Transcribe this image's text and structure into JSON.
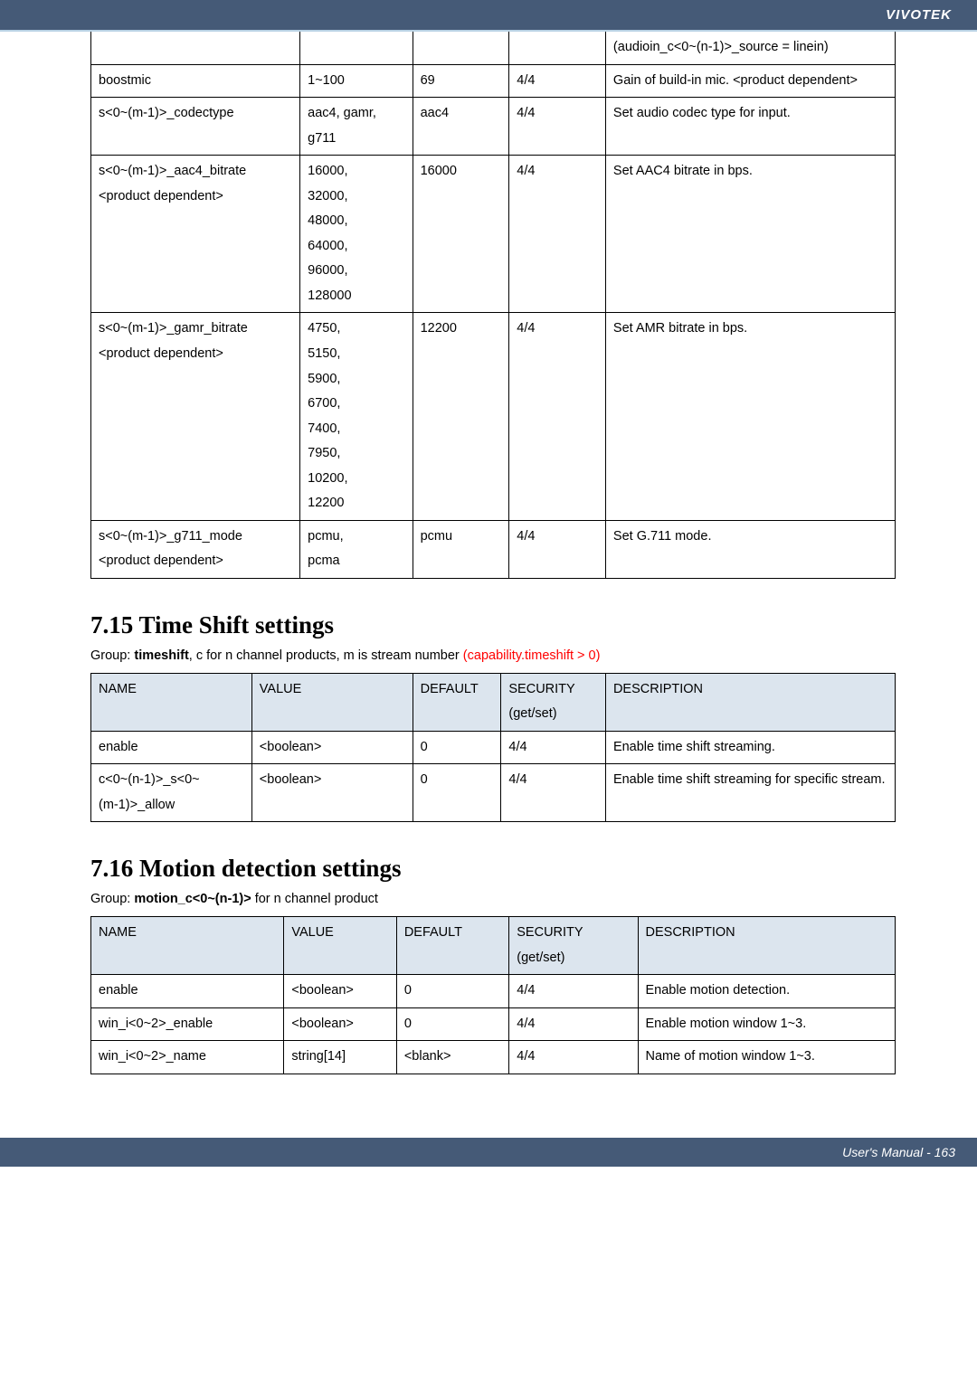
{
  "header": {
    "brand": "VIVOTEK"
  },
  "footer": {
    "text": "User's Manual - 163"
  },
  "table1": {
    "rows": [
      {
        "name": "",
        "value": "",
        "def": "",
        "sec": "",
        "desc": "(audioin_c<0~(n-1)>_source = linein)"
      },
      {
        "name": "boostmic",
        "value": "1~100",
        "def": "69",
        "sec": "4/4",
        "desc": "Gain of build-in mic. <product dependent>"
      },
      {
        "name": "s<0~(m-1)>_codectype",
        "value": "aac4, gamr, g711",
        "def": "aac4",
        "sec": "4/4",
        "desc": "Set audio codec type for input."
      },
      {
        "name": "s<0~(m-1)>_aac4_bitrate\n<product dependent>",
        "value": "16000,\n32000,\n48000,\n64000,\n96000,\n128000",
        "def": "16000",
        "sec": "4/4",
        "desc": "Set AAC4 bitrate in bps."
      },
      {
        "name": "s<0~(m-1)>_gamr_bitrate\n<product dependent>",
        "value": "4750,\n5150,\n5900,\n6700,\n7400,\n7950,\n10200,\n12200",
        "def": "12200",
        "sec": "4/4",
        "desc": "Set AMR bitrate in bps."
      },
      {
        "name": "s<0~(m-1)>_g711_mode\n<product dependent>",
        "value": "pcmu,\npcma",
        "def": "pcmu",
        "sec": "4/4",
        "desc": "Set G.711 mode."
      }
    ],
    "col_widths": [
      "26%",
      "14%",
      "12%",
      "12%",
      "36%"
    ]
  },
  "section715": {
    "title": "7.15 Time Shift settings",
    "group_prefix": "Group: ",
    "group_bold": "timeshift",
    "group_rest": ", c for n channel products, m is stream number ",
    "group_red": "(capability.timeshift > 0)",
    "headers": [
      "NAME",
      "VALUE",
      "DEFAULT",
      "SECURITY\n(get/set)",
      "DESCRIPTION"
    ],
    "rows": [
      {
        "name": "enable",
        "value": "<boolean>",
        "def": "0",
        "sec": "4/4",
        "desc": "Enable time shift streaming."
      },
      {
        "name": "c<0~(n-1)>_s<0~\n(m-1)>_allow",
        "value": "<boolean>",
        "def": "0",
        "sec": "4/4",
        "desc": "Enable time shift streaming for specific stream."
      }
    ],
    "col_widths": [
      "20%",
      "20%",
      "11%",
      "13%",
      "36%"
    ]
  },
  "section716": {
    "title": "7.16 Motion detection settings",
    "group_prefix": "Group: ",
    "group_bold": "motion_c<0~(n-1)>",
    "group_rest": " for n channel product",
    "headers": [
      "NAME",
      "VALUE",
      "DEFAULT",
      "SECURITY\n(get/set)",
      "DESCRIPTION"
    ],
    "rows": [
      {
        "name": "enable",
        "value": "<boolean>",
        "def": "0",
        "sec": "4/4",
        "desc": "Enable motion detection."
      },
      {
        "name": "win_i<0~2>_enable",
        "value": "<boolean>",
        "def": "0",
        "sec": "4/4",
        "desc": "Enable motion window 1~3."
      },
      {
        "name": "win_i<0~2>_name",
        "value": "string[14]",
        "def": "<blank>",
        "sec": "4/4",
        "desc": "Name of motion window 1~3."
      }
    ],
    "col_widths": [
      "24%",
      "14%",
      "14%",
      "16%",
      "32%"
    ]
  }
}
